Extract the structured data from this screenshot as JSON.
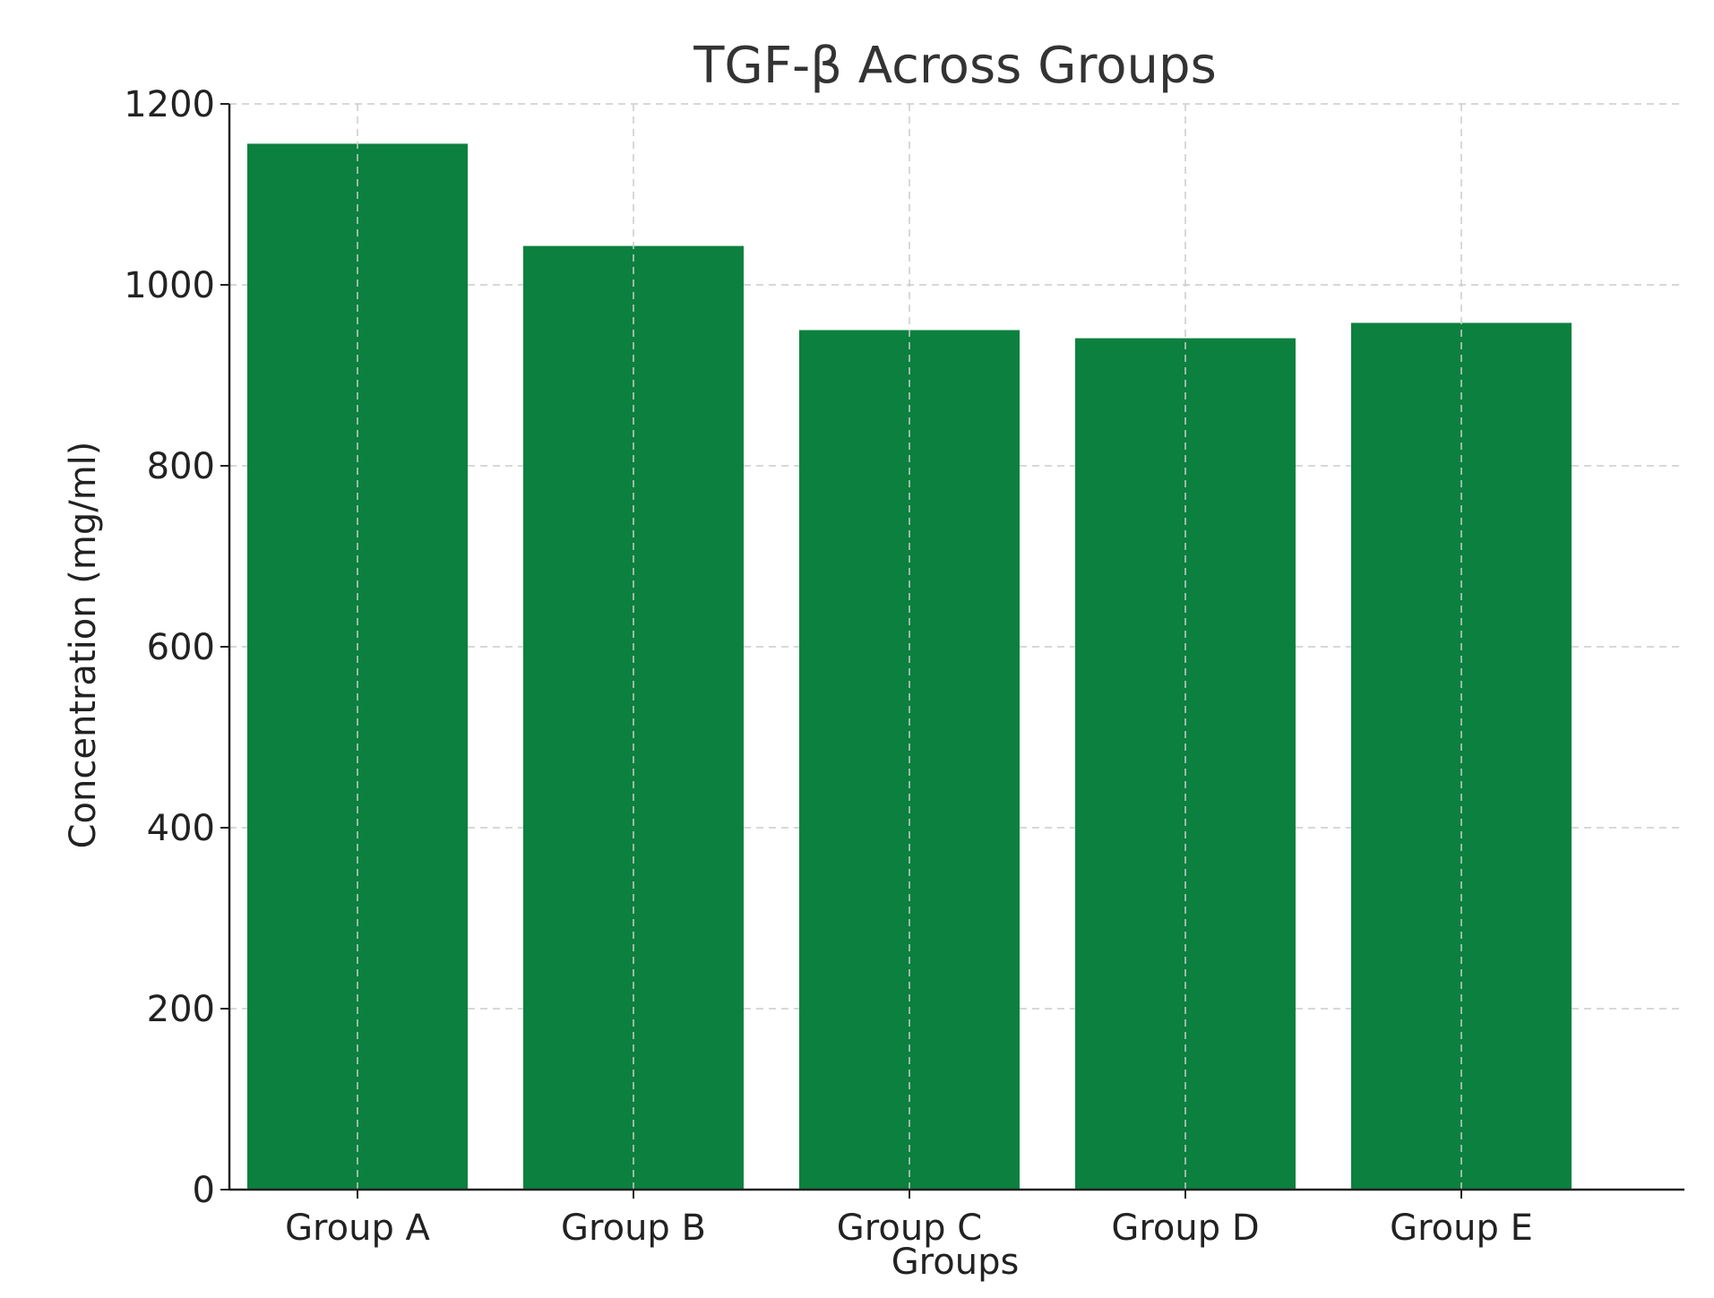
{
  "chart_data": {
    "type": "bar",
    "title": "TGF-β Across Groups",
    "xlabel": "Groups",
    "ylabel": "Concentration (mg/ml)",
    "categories": [
      "Group A",
      "Group B",
      "Group C",
      "Group D",
      "Group E"
    ],
    "values": [
      1156,
      1043,
      950,
      941,
      958
    ],
    "ylim": [
      0,
      1200
    ],
    "yticks": [
      0,
      200,
      400,
      600,
      800,
      1000,
      1200
    ],
    "grid": true,
    "bar_color": "#0c803e"
  }
}
